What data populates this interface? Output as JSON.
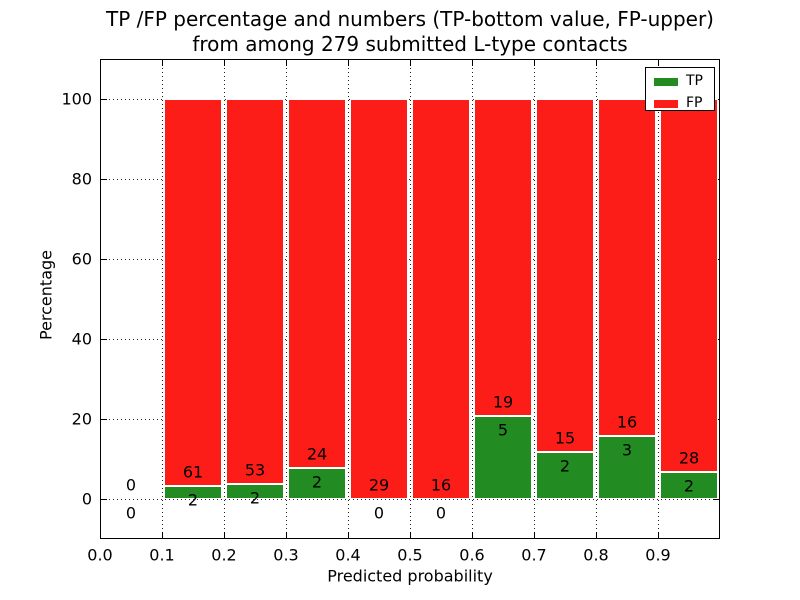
{
  "figure": {
    "background": "#ffffff"
  },
  "chart_data": {
    "type": "bar",
    "stacked": true,
    "normalization": "each bin stacked to 100 percent",
    "title": {
      "line1": "TP /FP percentage and numbers (TP-bottom value, FP-upper)",
      "line2": "from among 279 submitted L-type contacts"
    },
    "xlabel": "Predicted probability",
    "ylabel": "Percentage",
    "xlim": [
      0.0,
      1.0
    ],
    "ylim": [
      -10,
      110
    ],
    "grid": {
      "style": "dotted",
      "color": "#222222",
      "on": true
    },
    "bin_edges": [
      0.0,
      0.1,
      0.2,
      0.3,
      0.4,
      0.5,
      0.6,
      0.7,
      0.8,
      0.9,
      1.0
    ],
    "series": [
      {
        "name": "TP",
        "color": "#228b22",
        "counts": [
          0,
          2,
          2,
          2,
          0,
          0,
          5,
          2,
          3,
          2
        ]
      },
      {
        "name": "FP",
        "color": "#fc1d18",
        "counts": [
          0,
          61,
          53,
          24,
          29,
          16,
          19,
          15,
          16,
          28
        ]
      }
    ],
    "tp_percent_by_bin": [
      0,
      3.17,
      3.64,
      7.69,
      0,
      0,
      20.83,
      11.76,
      15.79,
      6.67
    ],
    "total_contacts": 279,
    "xticks": [
      {
        "label": "0.0",
        "value": 0.0
      },
      {
        "label": "0.1",
        "value": 0.1
      },
      {
        "label": "0.2",
        "value": 0.2
      },
      {
        "label": "0.3",
        "value": 0.3
      },
      {
        "label": "0.4",
        "value": 0.4
      },
      {
        "label": "0.5",
        "value": 0.5
      },
      {
        "label": "0.6",
        "value": 0.6
      },
      {
        "label": "0.7",
        "value": 0.7
      },
      {
        "label": "0.8",
        "value": 0.8
      },
      {
        "label": "0.9",
        "value": 0.9
      }
    ],
    "yticks": [
      {
        "label": "0",
        "value": 0
      },
      {
        "label": "20",
        "value": 20
      },
      {
        "label": "40",
        "value": 40
      },
      {
        "label": "60",
        "value": 60
      },
      {
        "label": "80",
        "value": 80
      },
      {
        "label": "100",
        "value": 100
      }
    ],
    "legend": {
      "position": "upper right",
      "entries": [
        "TP",
        "FP"
      ]
    }
  }
}
